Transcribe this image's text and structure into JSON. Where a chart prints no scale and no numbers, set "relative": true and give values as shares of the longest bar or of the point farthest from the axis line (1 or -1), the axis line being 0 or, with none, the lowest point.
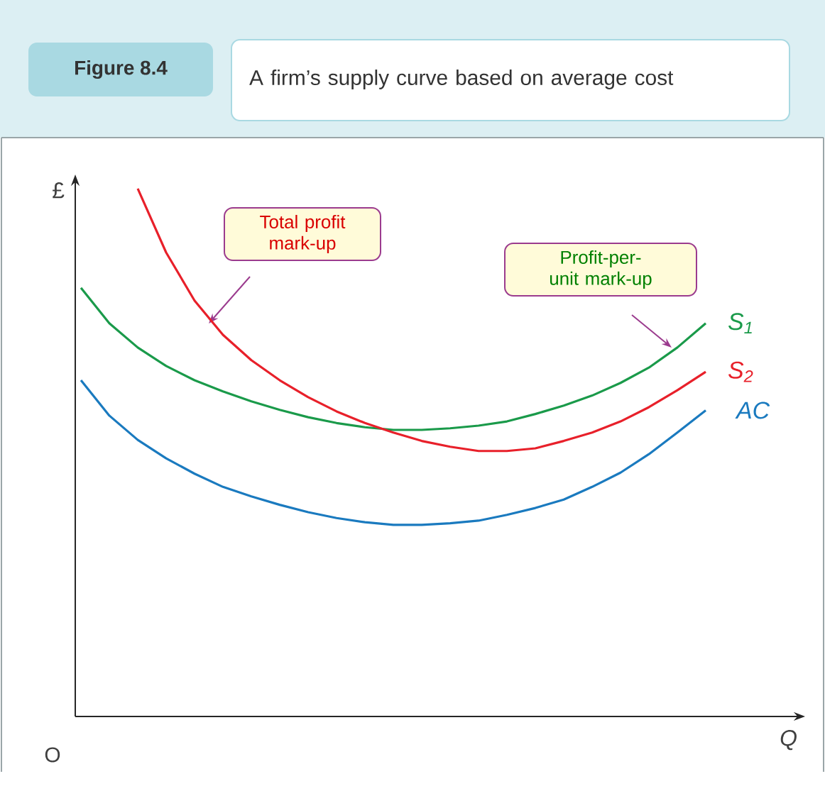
{
  "chart_data": {
    "type": "line",
    "relative": true,
    "title": "A firm’s supply curve based on average cost",
    "xlabel": "Q",
    "ylabel": "£",
    "annotations": [
      "Figure 8.4",
      "Total profit mark-up",
      "Profit-per-unit mark-up",
      "O"
    ],
    "categories": [
      null,
      null,
      null,
      null,
      null,
      null,
      null,
      null,
      null,
      null,
      null,
      null,
      null,
      null,
      null,
      null,
      null,
      null,
      null,
      null,
      null,
      null,
      null
    ],
    "series": [
      {
        "name": "S$_{1}$",
        "color": "#1a9a4a",
        "values": [
          0.812,
          0.745,
          0.699,
          0.664,
          0.637,
          0.616,
          0.597,
          0.581,
          0.567,
          0.556,
          0.548,
          0.543,
          0.543,
          0.546,
          0.551,
          0.559,
          0.573,
          0.589,
          0.608,
          0.632,
          0.661,
          0.699,
          0.745
        ]
      },
      {
        "name": "S$_{2}$",
        "color": "#e8202a",
        "values": [
          null,
          null,
          1.0,
          0.879,
          0.788,
          0.723,
          0.675,
          0.637,
          0.605,
          0.578,
          0.556,
          0.538,
          0.522,
          0.511,
          0.503,
          0.503,
          0.508,
          0.522,
          0.538,
          0.559,
          0.586,
          0.618,
          0.653
        ]
      },
      {
        "name": "AC",
        "color": "#1a7abf",
        "values": [
          0.637,
          0.57,
          0.524,
          0.489,
          0.46,
          0.435,
          0.417,
          0.401,
          0.387,
          0.376,
          0.368,
          0.363,
          0.363,
          0.366,
          0.371,
          0.382,
          0.395,
          0.411,
          0.435,
          0.462,
          0.497,
          0.538,
          0.58
        ]
      }
    ]
  }
}
